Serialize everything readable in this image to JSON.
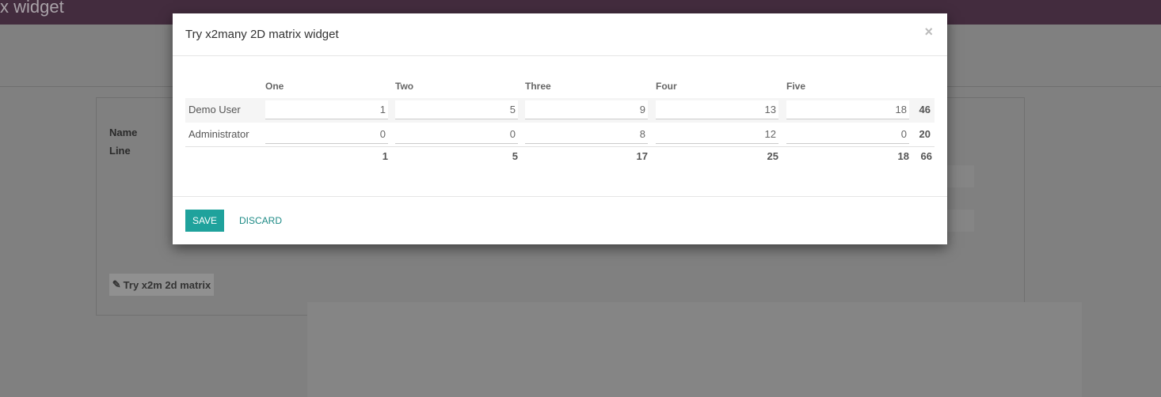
{
  "navbar": {
    "title_fragment": "x widget",
    "color": "#432c3e"
  },
  "form": {
    "fields": [
      "Name",
      "Line"
    ],
    "try_button": "Try x2m 2d matrix",
    "try_icon": "edit-icon"
  },
  "dialog": {
    "title": "Try x2many 2D matrix widget",
    "close_icon": "close-icon",
    "columns": [
      "One",
      "Two",
      "Three",
      "Four",
      "Five"
    ],
    "rows": [
      {
        "label": "Demo User",
        "values": [
          1,
          5,
          9,
          13,
          18
        ],
        "total": 46
      },
      {
        "label": "Administrator",
        "values": [
          0,
          0,
          8,
          12,
          0
        ],
        "total": 20
      }
    ],
    "column_totals": [
      1,
      5,
      17,
      25,
      18
    ],
    "grand_total": 66,
    "save_label": "SAVE",
    "discard_label": "DISCARD",
    "accent": "#1fa29c"
  }
}
